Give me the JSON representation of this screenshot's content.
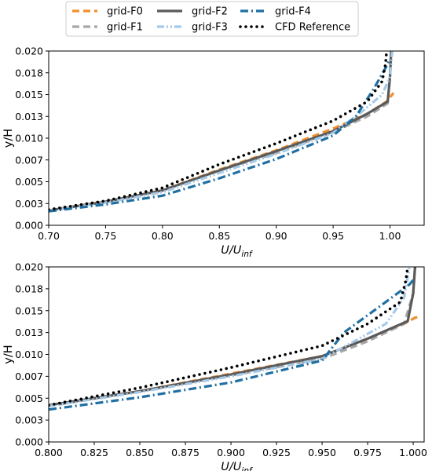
{
  "legend": {
    "placement": "top-center",
    "entries": [
      {
        "label": "grid-F0",
        "color": "#f28e2b",
        "style": "dashed"
      },
      {
        "label": "grid-F1",
        "color": "#a8a8a8",
        "style": "dashed"
      },
      {
        "label": "grid-F2",
        "color": "#5a5a5a",
        "style": "solid"
      },
      {
        "label": "grid-F3",
        "color": "#a5c9e8",
        "style": "dashdotdot"
      },
      {
        "label": "grid-F4",
        "color": "#1f6fa3",
        "style": "dashdot"
      },
      {
        "label": "CFD Reference",
        "color": "#000000",
        "style": "dotted"
      }
    ]
  },
  "chart_data": [
    {
      "type": "line",
      "xlabel_main": "U/U",
      "xlabel_sub": "inf",
      "ylabel": "y/H",
      "xlim": [
        0.7,
        1.03
      ],
      "ylim": [
        0.0,
        0.02
      ],
      "xticks": [
        "0.70",
        "0.75",
        "0.80",
        "0.85",
        "0.90",
        "0.95",
        "1.00"
      ],
      "xtick_values": [
        0.7,
        0.75,
        0.8,
        0.85,
        0.9,
        0.95,
        1.0
      ],
      "yticks": [
        "0.000",
        "0.003",
        "0.005",
        "0.007",
        "0.010",
        "0.013",
        "0.015",
        "0.018",
        "0.020"
      ],
      "ytick_values": [
        0.0,
        0.0025,
        0.005,
        0.0075,
        0.01,
        0.0125,
        0.015,
        0.0175,
        0.02
      ],
      "grid": false,
      "series": [
        {
          "name": "grid-F0",
          "x": [
            0.7,
            0.75,
            0.8,
            0.85,
            0.9,
            0.95,
            0.98,
            0.997,
            1.002,
            1.003
          ],
          "y": [
            0.0017,
            0.0027,
            0.004,
            0.0064,
            0.0086,
            0.0111,
            0.0128,
            0.0142,
            0.015,
            0.0152
          ]
        },
        {
          "name": "grid-F1",
          "x": [
            0.7,
            0.75,
            0.8,
            0.85,
            0.9,
            0.95,
            0.98,
            0.998,
            1.0,
            1.001
          ],
          "y": [
            0.0017,
            0.0027,
            0.004,
            0.0063,
            0.0083,
            0.0107,
            0.0125,
            0.014,
            0.017,
            0.02
          ]
        },
        {
          "name": "grid-F2",
          "x": [
            0.7,
            0.75,
            0.8,
            0.85,
            0.9,
            0.95,
            0.98,
            0.998,
            1.0,
            1.001
          ],
          "y": [
            0.0017,
            0.0027,
            0.004,
            0.0063,
            0.0085,
            0.0108,
            0.0128,
            0.0142,
            0.017,
            0.02
          ]
        },
        {
          "name": "grid-F3",
          "x": [
            0.7,
            0.75,
            0.8,
            0.85,
            0.9,
            0.95,
            0.975,
            0.993,
            1.0,
            1.002
          ],
          "y": [
            0.0017,
            0.0026,
            0.0038,
            0.006,
            0.0082,
            0.0106,
            0.013,
            0.015,
            0.017,
            0.02
          ]
        },
        {
          "name": "grid-F4",
          "x": [
            0.7,
            0.75,
            0.8,
            0.85,
            0.9,
            0.95,
            0.97,
            0.985,
            0.998,
            0.999
          ],
          "y": [
            0.0016,
            0.0024,
            0.0034,
            0.0054,
            0.0076,
            0.0103,
            0.0125,
            0.0155,
            0.0185,
            0.019
          ]
        },
        {
          "name": "CFD Reference",
          "x": [
            0.7,
            0.75,
            0.8,
            0.85,
            0.9,
            0.95,
            0.98,
            0.993,
            0.996,
            0.997
          ],
          "y": [
            0.0018,
            0.0028,
            0.0043,
            0.007,
            0.0094,
            0.012,
            0.0142,
            0.0165,
            0.0185,
            0.02
          ]
        }
      ]
    },
    {
      "type": "line",
      "xlabel_main": "U/U",
      "xlabel_sub": "inf",
      "ylabel": "y/H",
      "xlim": [
        0.8,
        1.006
      ],
      "ylim": [
        0.0,
        0.02
      ],
      "xticks": [
        "0.800",
        "0.825",
        "0.850",
        "0.875",
        "0.900",
        "0.925",
        "0.950",
        "0.975",
        "1.000"
      ],
      "xtick_values": [
        0.8,
        0.825,
        0.85,
        0.875,
        0.9,
        0.925,
        0.95,
        0.975,
        1.0
      ],
      "yticks": [
        "0.000",
        "0.003",
        "0.005",
        "0.007",
        "0.010",
        "0.013",
        "0.015",
        "0.018",
        "0.020"
      ],
      "ytick_values": [
        0.0,
        0.0025,
        0.005,
        0.0075,
        0.01,
        0.0125,
        0.015,
        0.0175,
        0.02
      ],
      "grid": false,
      "series": [
        {
          "name": "grid-F0",
          "x": [
            0.8,
            0.85,
            0.9,
            0.95,
            0.975,
            0.995,
            1.001,
            1.003
          ],
          "y": [
            0.0041,
            0.0058,
            0.0078,
            0.0098,
            0.0118,
            0.0135,
            0.0142,
            0.0143
          ]
        },
        {
          "name": "grid-F1",
          "x": [
            0.8,
            0.85,
            0.9,
            0.95,
            0.975,
            0.995,
            1.0,
            1.001
          ],
          "y": [
            0.0041,
            0.0058,
            0.0076,
            0.0095,
            0.0115,
            0.0135,
            0.017,
            0.02
          ]
        },
        {
          "name": "grid-F2",
          "x": [
            0.8,
            0.85,
            0.9,
            0.95,
            0.975,
            0.997,
            1.0,
            1.001
          ],
          "y": [
            0.0042,
            0.0058,
            0.0077,
            0.0098,
            0.0118,
            0.0138,
            0.017,
            0.02
          ]
        },
        {
          "name": "grid-F3",
          "x": [
            0.8,
            0.85,
            0.9,
            0.95,
            0.965,
            0.985,
            0.995,
            0.998
          ],
          "y": [
            0.0041,
            0.0057,
            0.0075,
            0.0095,
            0.0112,
            0.0135,
            0.0165,
            0.02
          ]
        },
        {
          "name": "grid-F4",
          "x": [
            0.8,
            0.85,
            0.9,
            0.95,
            0.962,
            0.985,
            0.998,
            1.0
          ],
          "y": [
            0.0037,
            0.0051,
            0.0068,
            0.0093,
            0.0125,
            0.016,
            0.018,
            0.0185
          ]
        },
        {
          "name": "CFD Reference",
          "x": [
            0.8,
            0.85,
            0.9,
            0.95,
            0.975,
            0.993,
            0.996,
            0.997
          ],
          "y": [
            0.0042,
            0.0062,
            0.0085,
            0.011,
            0.0135,
            0.016,
            0.0185,
            0.02
          ]
        }
      ]
    }
  ]
}
